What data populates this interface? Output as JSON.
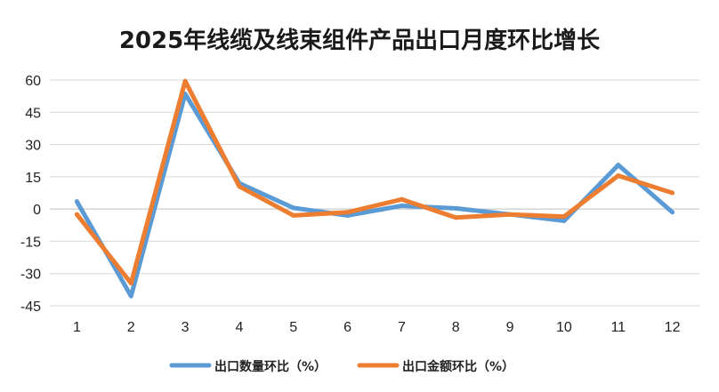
{
  "chart_data": {
    "type": "line",
    "title": "2025年线缆及线束组件产品出口月度环比增长",
    "xlabel": "",
    "ylabel": "",
    "categories": [
      "1",
      "2",
      "3",
      "4",
      "5",
      "6",
      "7",
      "8",
      "9",
      "10",
      "11",
      "12"
    ],
    "ylim": [
      -45,
      60
    ],
    "yticks": [
      -45,
      -30,
      -15,
      0,
      15,
      30,
      45,
      60
    ],
    "ytick_labels": [
      "-45",
      "-30",
      "-15",
      "0",
      "15",
      "30",
      "45",
      "60"
    ],
    "grid": true,
    "legend": "bottom",
    "series": [
      {
        "name": "出口数量环比（%）",
        "color": "#5b9bd5",
        "values": [
          3.5,
          -40.5,
          53.5,
          12.0,
          0.5,
          -3.0,
          1.5,
          0.3,
          -2.5,
          -5.5,
          20.5,
          -1.5
        ]
      },
      {
        "name": "出口金额环比（%）",
        "color": "#ed7d31",
        "values": [
          -2.5,
          -34.5,
          59.5,
          10.5,
          -3.0,
          -1.5,
          4.5,
          -4.0,
          -2.5,
          -3.5,
          15.5,
          7.5
        ]
      }
    ]
  }
}
